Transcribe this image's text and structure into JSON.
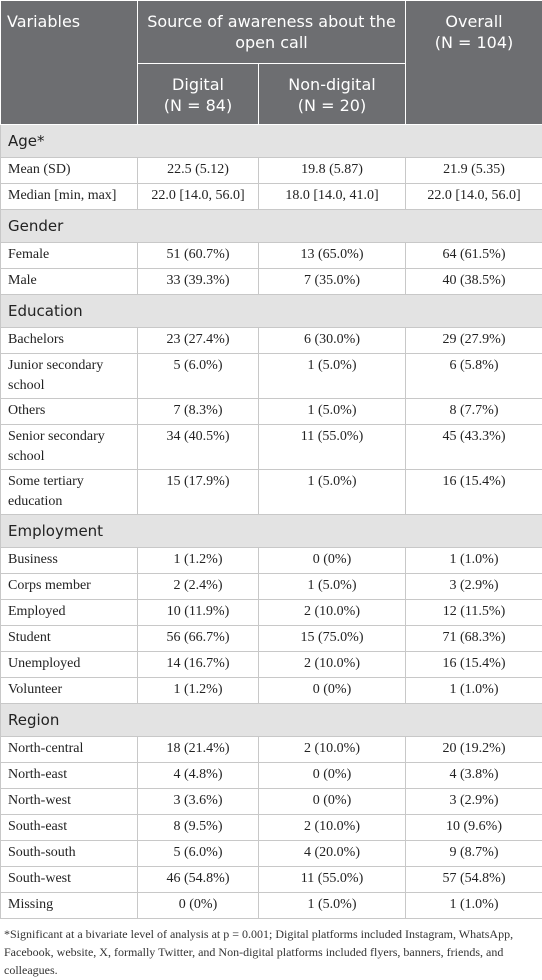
{
  "table": {
    "header": {
      "variables": "Variables",
      "group": "Source of awareness about the open call",
      "overall": "Overall",
      "overall_n": "(N = 104)",
      "columns": [
        {
          "label": "Digital",
          "n": "(N = 84)"
        },
        {
          "label": "Non-digital",
          "n": "(N = 20)"
        }
      ]
    },
    "sections": [
      {
        "title": "Age*",
        "rows": [
          [
            "Mean (SD)",
            "22.5 (5.12)",
            "19.8 (5.87)",
            "21.9 (5.35)"
          ],
          [
            "Median [min, max]",
            "22.0 [14.0, 56.0]",
            "18.0 [14.0, 41.0]",
            "22.0 [14.0, 56.0]"
          ]
        ]
      },
      {
        "title": "Gender",
        "rows": [
          [
            "Female",
            "51 (60.7%)",
            "13 (65.0%)",
            "64 (61.5%)"
          ],
          [
            "Male",
            "33 (39.3%)",
            "7 (35.0%)",
            "40 (38.5%)"
          ]
        ]
      },
      {
        "title": "Education",
        "rows": [
          [
            "Bachelors",
            "23 (27.4%)",
            "6 (30.0%)",
            "29 (27.9%)"
          ],
          [
            "Junior secondary school",
            "5 (6.0%)",
            "1 (5.0%)",
            "6 (5.8%)"
          ],
          [
            "Others",
            "7 (8.3%)",
            "1 (5.0%)",
            "8 (7.7%)"
          ],
          [
            "Senior secondary school",
            "34 (40.5%)",
            "11 (55.0%)",
            "45 (43.3%)"
          ],
          [
            "Some tertiary education",
            "15 (17.9%)",
            "1 (5.0%)",
            "16 (15.4%)"
          ]
        ]
      },
      {
        "title": "Employment",
        "rows": [
          [
            "Business",
            "1 (1.2%)",
            "0 (0%)",
            "1 (1.0%)"
          ],
          [
            "Corps member",
            "2 (2.4%)",
            "1 (5.0%)",
            "3 (2.9%)"
          ],
          [
            "Employed",
            "10 (11.9%)",
            "2 (10.0%)",
            "12 (11.5%)"
          ],
          [
            "Student",
            "56 (66.7%)",
            "15 (75.0%)",
            "71 (68.3%)"
          ],
          [
            "Unemployed",
            "14 (16.7%)",
            "2 (10.0%)",
            "16 (15.4%)"
          ],
          [
            "Volunteer",
            "1 (1.2%)",
            "0 (0%)",
            "1 (1.0%)"
          ]
        ]
      },
      {
        "title": "Region",
        "rows": [
          [
            "North-central",
            "18 (21.4%)",
            "2 (10.0%)",
            "20 (19.2%)"
          ],
          [
            "North-east",
            "4 (4.8%)",
            "0 (0%)",
            "4 (3.8%)"
          ],
          [
            "North-west",
            "3 (3.6%)",
            "0 (0%)",
            "3 (2.9%)"
          ],
          [
            "South-east",
            "8 (9.5%)",
            "2 (10.0%)",
            "10 (9.6%)"
          ],
          [
            "South-south",
            "5 (6.0%)",
            "4 (20.0%)",
            "9 (8.7%)"
          ],
          [
            "South-west",
            "46 (54.8%)",
            "11 (55.0%)",
            "57 (54.8%)"
          ],
          [
            "Missing",
            "0 (0%)",
            "1 (5.0%)",
            "1 (1.0%)"
          ]
        ]
      }
    ],
    "footnote": "*Significant at a bivariate level of analysis at p = 0.001; Digital platforms included Instagram, WhatsApp, Facebook, website, X, formally Twitter, and Non-digital platforms included flyers, banners, friends, and colleagues."
  }
}
